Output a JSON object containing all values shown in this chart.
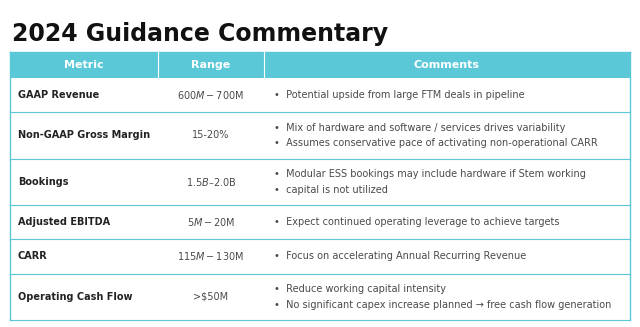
{
  "title": "2024 Guidance Commentary",
  "title_fontsize": 17,
  "header_bg": "#5bc8d8",
  "header_text_color": "#ffffff",
  "header_labels": [
    "Metric",
    "Range",
    "Comments"
  ],
  "separator_color": "#5bc8d8",
  "text_color": "#4a4a4a",
  "bold_color": "#222222",
  "bg_color": "#ffffff",
  "rows": [
    {
      "metric": "GAAP Revenue",
      "range": "$600M - $700M",
      "comments": [
        "Potential upside from large FTM deals in pipeline"
      ],
      "n_lines": 1
    },
    {
      "metric": "Non-GAAP Gross Margin",
      "range": "15-20%",
      "comments": [
        "Mix of hardware and software / services drives variability",
        "Assumes conservative pace of activating non-operational CARR"
      ],
      "n_lines": 2
    },
    {
      "metric": "Bookings",
      "range": "$1.5B – $2.0B",
      "comments": [
        "Modular ESS bookings may include hardware if Stem working",
        "capital is not utilized"
      ],
      "n_lines": 2
    },
    {
      "metric": "Adjusted EBITDA",
      "range": "$5M - $20M",
      "comments": [
        "Expect continued operating leverage to achieve targets"
      ],
      "n_lines": 1
    },
    {
      "metric": "CARR",
      "range": "$115M - $130M",
      "comments": [
        "Focus on accelerating Annual Recurring Revenue"
      ],
      "n_lines": 1
    },
    {
      "metric": "Operating Cash Flow",
      "range": ">$50M",
      "comments": [
        "Reduce working capital intensity",
        "No significant capex increase planned → free cash flow generation"
      ],
      "n_lines": 2
    }
  ]
}
